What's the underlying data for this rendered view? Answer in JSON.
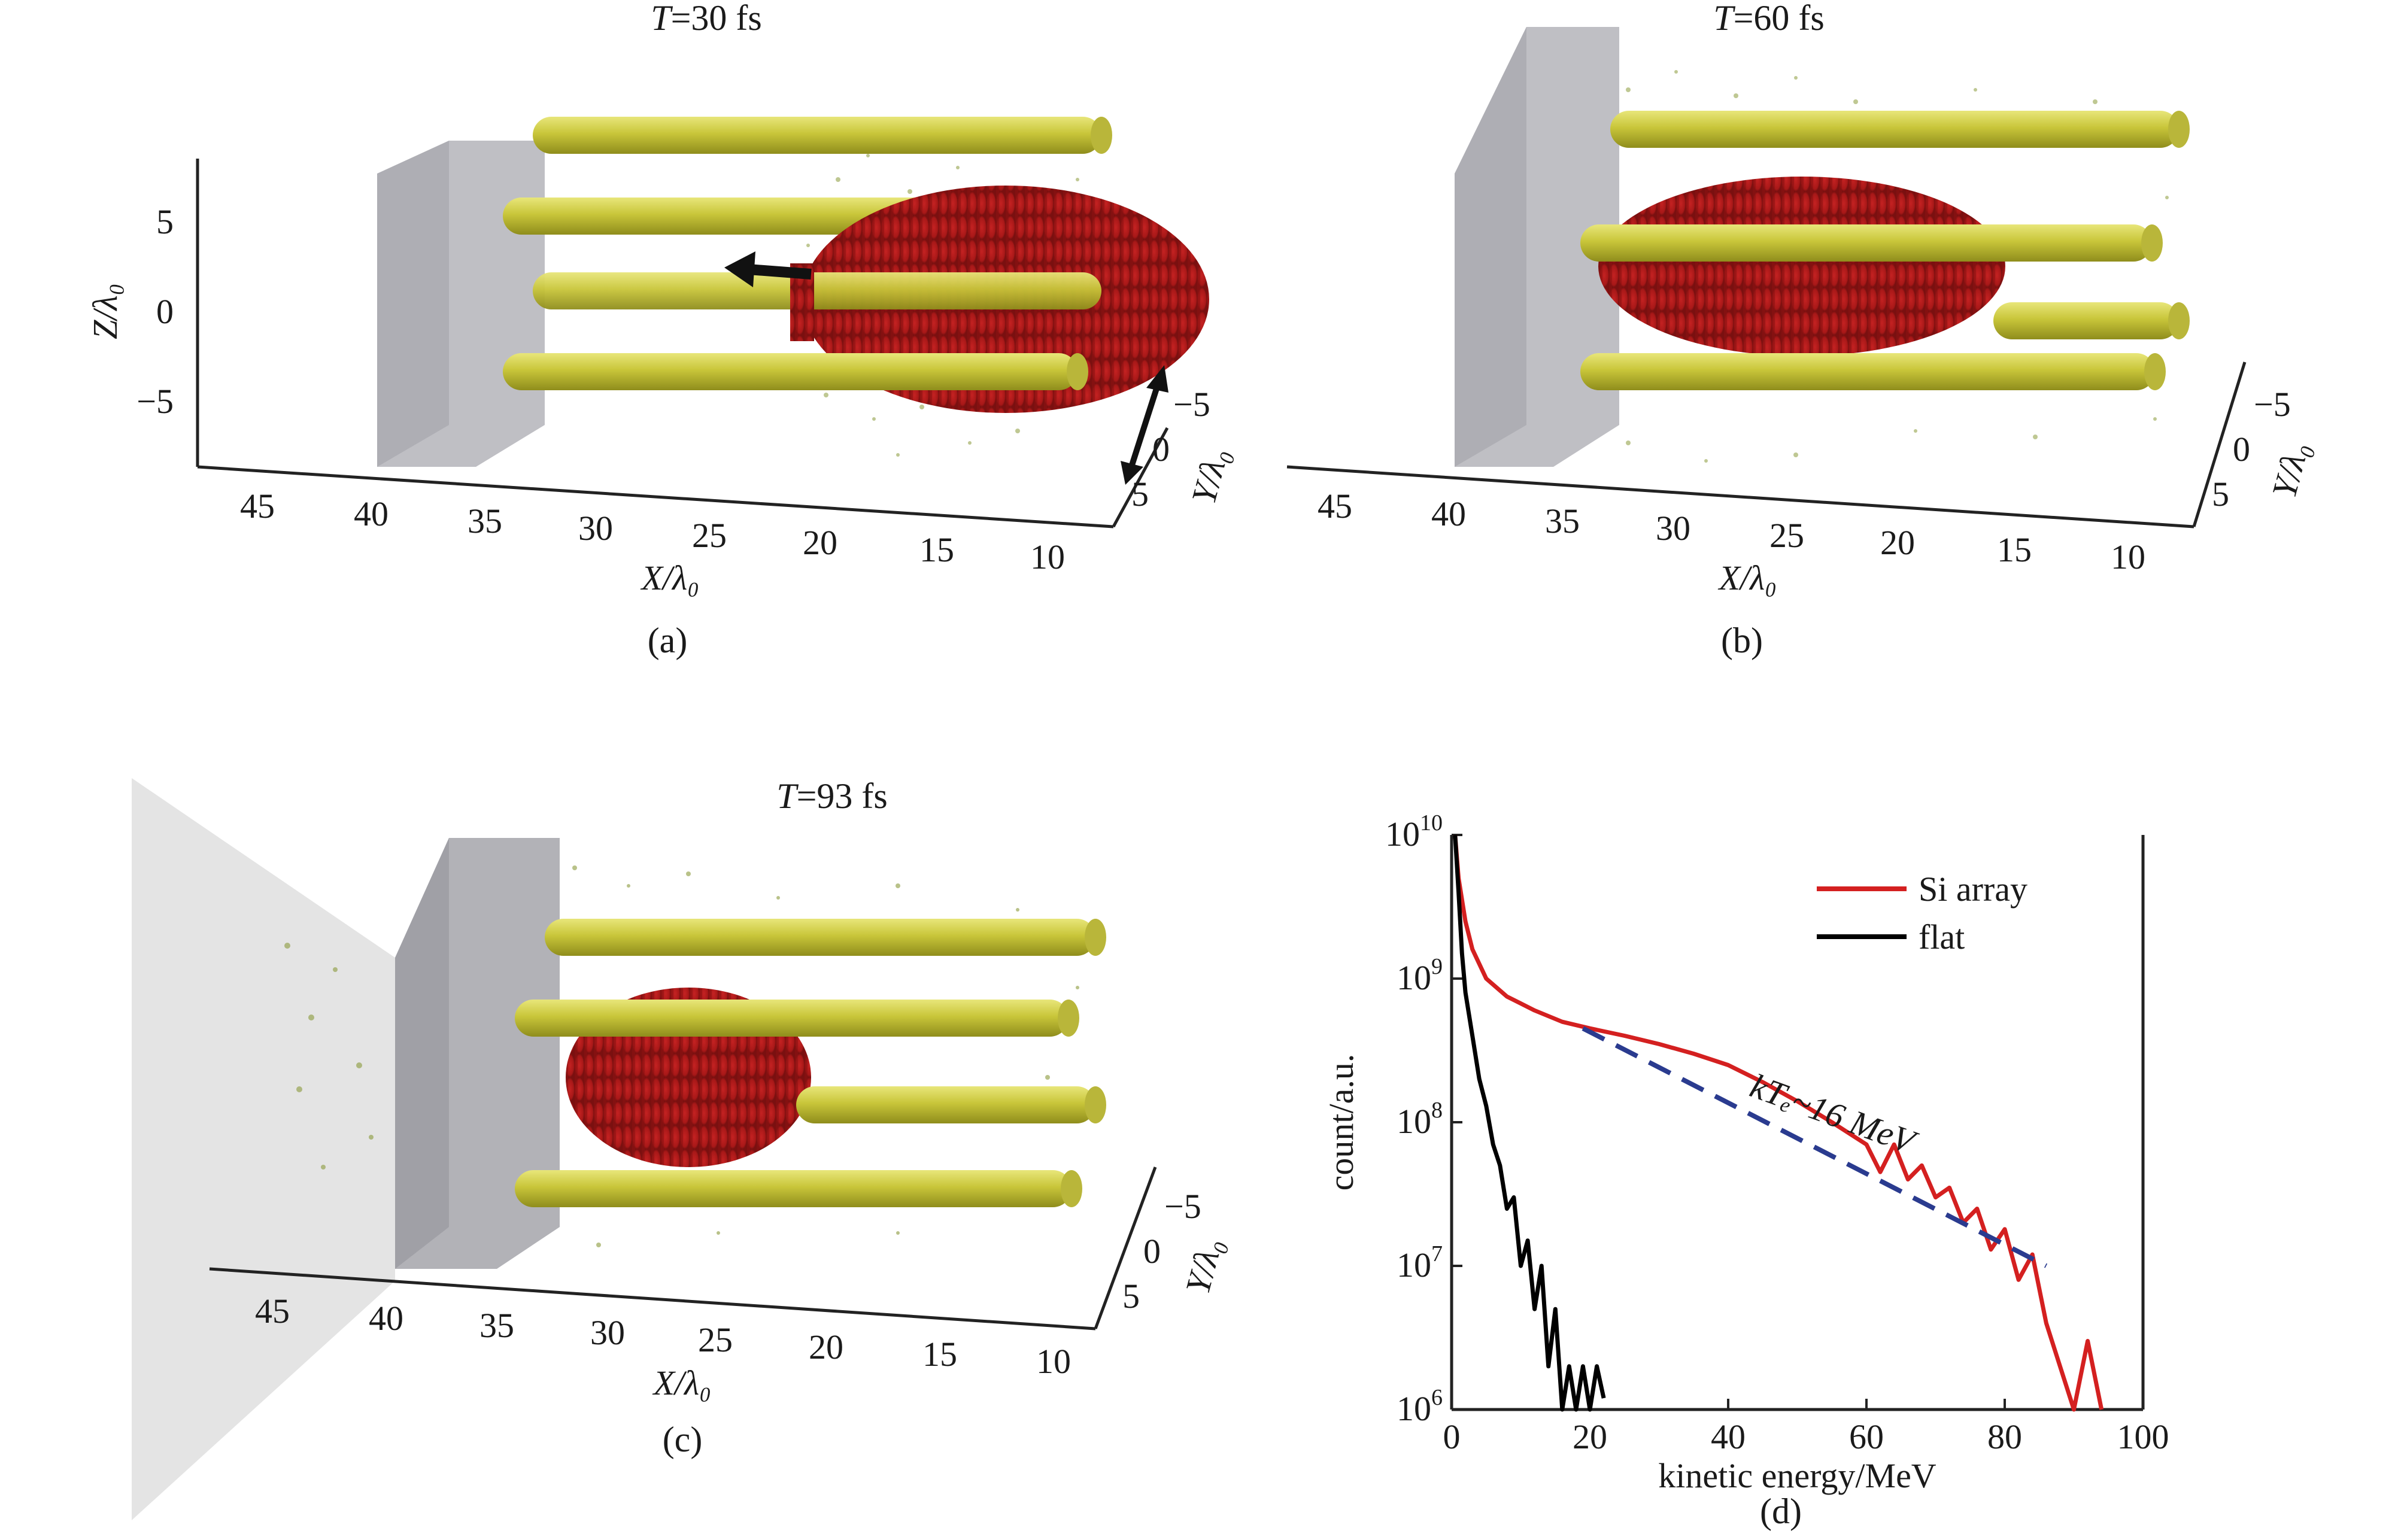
{
  "panels": {
    "a": {
      "title_italic": "T",
      "title_rest": "=30 fs",
      "label": "(a)",
      "x_ticks": [
        "45",
        "40",
        "35",
        "30",
        "25",
        "20",
        "15",
        "10"
      ],
      "y_ticks": [
        "−5",
        "0",
        "5"
      ],
      "z_ticks": [
        "5",
        "0",
        "−5"
      ],
      "x_axis_label": "X/λ₀",
      "y_axis_label": "Y/λ₀",
      "z_axis_label": "Z/λ₀"
    },
    "b": {
      "title_italic": "T",
      "title_rest": "=60 fs",
      "label": "(b)",
      "x_ticks": [
        "45",
        "40",
        "35",
        "30",
        "25",
        "20",
        "15",
        "10"
      ],
      "y_ticks": [
        "−5",
        "0",
        "5"
      ],
      "x_axis_label": "X/λ₀",
      "y_axis_label": "Y/λ₀"
    },
    "c": {
      "title_italic": "T",
      "title_rest": "=93 fs",
      "label": "(c)",
      "x_ticks": [
        "45",
        "40",
        "35",
        "30",
        "25",
        "20",
        "15",
        "10"
      ],
      "y_ticks": [
        "−5",
        "0",
        "5"
      ],
      "x_axis_label": "X/λ₀",
      "y_axis_label": "Y/λ₀"
    },
    "d": {
      "label": "(d)",
      "annotation": "kTₑ~16 MeV"
    }
  },
  "colors": {
    "rod": "#b8b52a",
    "pulse": "#b01818",
    "target": "#a9a9b0",
    "si_array": "#d42020",
    "flat": "#000000",
    "fit": "#2a3b8f"
  },
  "chart_data": {
    "type": "line",
    "xlabel": "kinetic energy/MeV",
    "ylabel": "count/a.u.",
    "xlim": [
      0,
      100
    ],
    "ylim": [
      1000000,
      10000000000
    ],
    "y_scale": "log",
    "x_ticks": [
      "0",
      "20",
      "40",
      "60",
      "80",
      "100"
    ],
    "y_ticks": [
      "10^6",
      "10^7",
      "10^8",
      "10^9",
      "10^10"
    ],
    "legend_position": "top-right",
    "series": [
      {
        "name": "Si array",
        "color": "#d42020",
        "points": [
          [
            0.5,
            10000000000.0
          ],
          [
            1,
            5000000000.0
          ],
          [
            2,
            2500000000.0
          ],
          [
            3,
            1600000000.0
          ],
          [
            5,
            1000000000.0
          ],
          [
            8,
            750000000.0
          ],
          [
            12,
            600000000.0
          ],
          [
            16,
            500000000.0
          ],
          [
            20,
            450000000.0
          ],
          [
            25,
            400000000.0
          ],
          [
            30,
            350000000.0
          ],
          [
            35,
            300000000.0
          ],
          [
            40,
            250000000.0
          ],
          [
            45,
            190000000.0
          ],
          [
            50,
            140000000.0
          ],
          [
            55,
            100000000.0
          ],
          [
            60,
            70000000.0
          ],
          [
            62,
            45000000.0
          ],
          [
            64,
            70000000.0
          ],
          [
            66,
            40000000.0
          ],
          [
            68,
            50000000.0
          ],
          [
            70,
            30000000.0
          ],
          [
            72,
            35000000.0
          ],
          [
            74,
            20000000.0
          ],
          [
            76,
            25000000.0
          ],
          [
            78,
            13000000.0
          ],
          [
            80,
            18000000.0
          ],
          [
            82,
            8000000.0
          ],
          [
            84,
            12000000.0
          ],
          [
            86,
            4000000.0
          ],
          [
            88,
            2000000.0
          ],
          [
            90,
            1000000.0
          ],
          [
            92,
            3000000.0
          ],
          [
            94,
            1000000.0
          ]
        ]
      },
      {
        "name": "flat",
        "color": "#000000",
        "points": [
          [
            0.5,
            10000000000.0
          ],
          [
            1,
            4000000000.0
          ],
          [
            1.5,
            1500000000.0
          ],
          [
            2,
            800000000.0
          ],
          [
            3,
            400000000.0
          ],
          [
            4,
            200000000.0
          ],
          [
            5,
            130000000.0
          ],
          [
            6,
            70000000.0
          ],
          [
            7,
            50000000.0
          ],
          [
            8,
            25000000.0
          ],
          [
            9,
            30000000.0
          ],
          [
            10,
            10000000.0
          ],
          [
            11,
            15000000.0
          ],
          [
            12,
            5000000.0
          ],
          [
            13,
            10000000.0
          ],
          [
            14,
            2000000.0
          ],
          [
            15,
            5000000.0
          ],
          [
            16,
            1000000.0
          ],
          [
            17,
            2000000.0
          ],
          [
            18,
            1000000.0
          ],
          [
            19,
            2000000.0
          ],
          [
            20,
            1000000.0
          ],
          [
            21,
            2000000.0
          ],
          [
            22,
            1200000.0
          ]
        ]
      },
      {
        "name": "",
        "color": "#2a3b8f",
        "style": "dashed",
        "points": [
          [
            19,
            450000000.0
          ],
          [
            86,
            10000000.0
          ]
        ]
      }
    ]
  }
}
